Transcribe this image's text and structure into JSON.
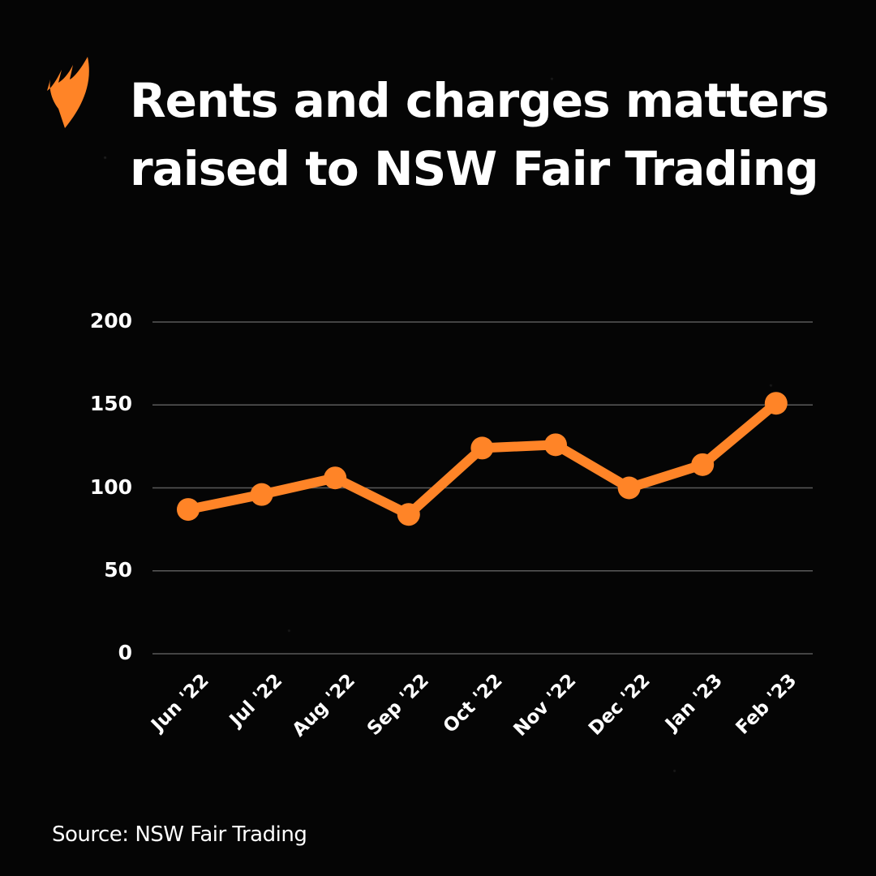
{
  "brand": {
    "logo_icon": "sbs-flame-logo",
    "accent_color": "#FF8427"
  },
  "header": {
    "title": "Rents and charges matters raised to NSW Fair Trading"
  },
  "footer": {
    "source": "Source: NSW Fair Trading"
  },
  "chart_data": {
    "type": "line",
    "title": "Rents and charges matters raised to NSW Fair Trading",
    "xlabel": "",
    "ylabel": "",
    "categories": [
      "Jun '22",
      "Jul '22",
      "Aug '22",
      "Sep '22",
      "Oct '22",
      "Nov '22",
      "Dec '22",
      "Jan '23",
      "Feb '23"
    ],
    "series": [
      {
        "name": "Rents and charges matters",
        "color": "#FF8427",
        "values": [
          87,
          96,
          106,
          84,
          124,
          126,
          100,
          114,
          151
        ]
      }
    ],
    "ylim": [
      0,
      200
    ],
    "yticks": [
      0,
      50,
      100,
      150,
      200
    ],
    "ytick_labels": [
      "0",
      "50",
      "100",
      "150",
      "200"
    ],
    "grid": true,
    "legend": "none",
    "source": "Source: NSW Fair Trading"
  }
}
